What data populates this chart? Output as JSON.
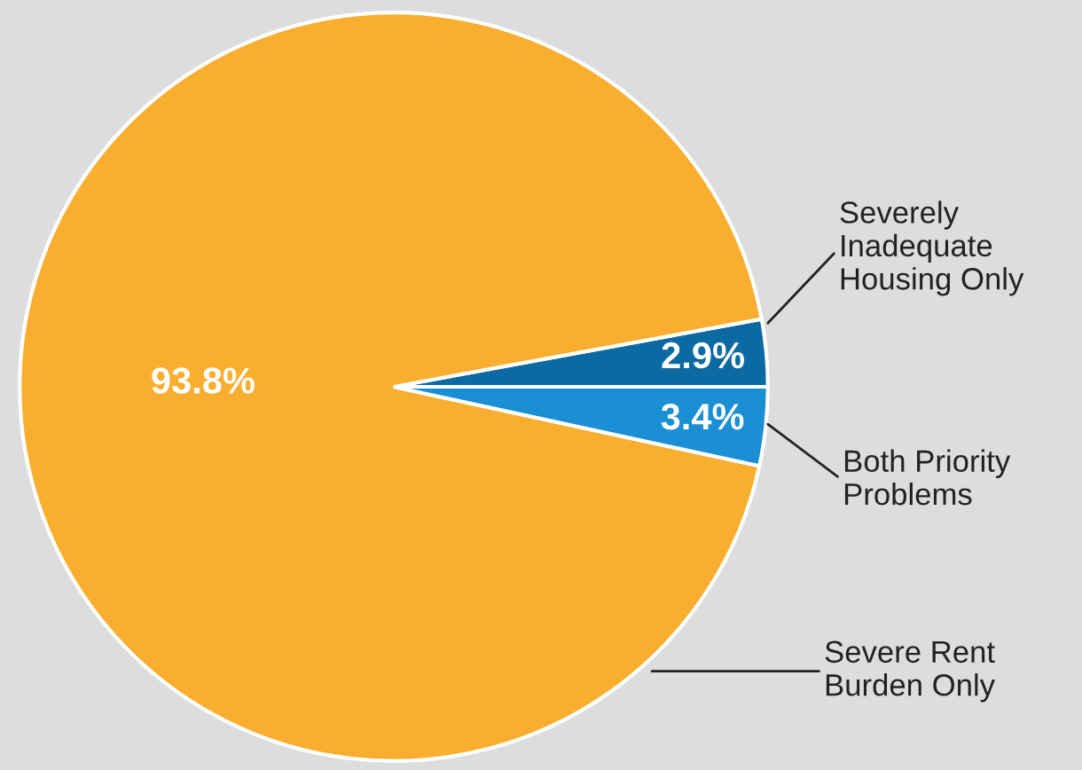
{
  "chart_data": {
    "type": "pie",
    "categories": [
      "Severely\nInadequate\nHousing Only",
      "Severe Rent\nBurden Only",
      "Both Priority\nProblems"
    ],
    "values": [
      2.9,
      93.8,
      3.4
    ],
    "value_labels": [
      "2.9%",
      "93.8%",
      "3.4%"
    ],
    "colors": [
      "#0b6aa2",
      "#f9ae2f",
      "#1a8fd3"
    ]
  }
}
